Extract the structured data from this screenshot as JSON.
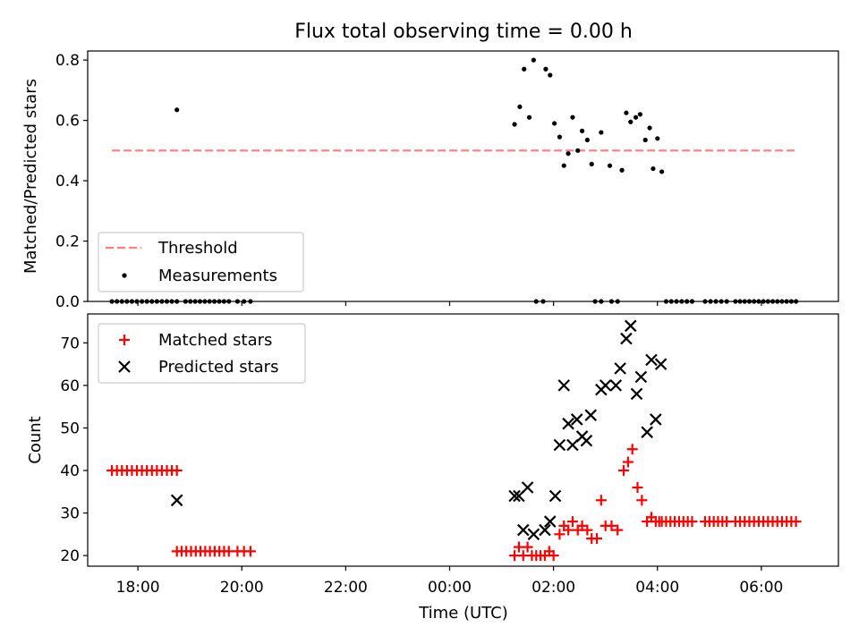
{
  "chart_data": [
    {
      "type": "scatter",
      "title": "Flux total observing time = 0.00 h",
      "ylabel": "Matched/Predicted stars",
      "xlabel": "",
      "xlim": [
        "17:02",
        "07:29"
      ],
      "ylim": [
        0,
        0.83
      ],
      "yticks": [
        "0.0",
        "0.2",
        "0.4",
        "0.6",
        "0.8"
      ],
      "legend": {
        "placement": "bottom-left",
        "entries": [
          "Threshold",
          "Measurements"
        ]
      },
      "threshold": {
        "name": "Threshold",
        "y": 0.5,
        "x_range": [
          "17:30",
          "06:40"
        ],
        "color": "#ff7f7f"
      },
      "series": [
        {
          "name": "Measurements",
          "color": "#000000",
          "points": [
            [
              "18:45",
              0.635
            ],
            [
              "01:15",
              0.587
            ],
            [
              "01:21",
              0.645
            ],
            [
              "01:26",
              0.77
            ],
            [
              "01:32",
              0.61
            ],
            [
              "01:37",
              0.8
            ],
            [
              "01:51",
              0.77
            ],
            [
              "01:56",
              0.75
            ],
            [
              "02:01",
              0.59
            ],
            [
              "02:07",
              0.545
            ],
            [
              "02:12",
              0.45
            ],
            [
              "02:17",
              0.49
            ],
            [
              "02:22",
              0.61
            ],
            [
              "02:28",
              0.5
            ],
            [
              "02:33",
              0.565
            ],
            [
              "02:39",
              0.535
            ],
            [
              "02:44",
              0.455
            ],
            [
              "02:55",
              0.56
            ],
            [
              "03:05",
              0.45
            ],
            [
              "03:19",
              0.435
            ],
            [
              "03:24",
              0.625
            ],
            [
              "03:29",
              0.595
            ],
            [
              "03:35",
              0.61
            ],
            [
              "03:40",
              0.62
            ],
            [
              "03:46",
              0.535
            ],
            [
              "03:51",
              0.575
            ],
            [
              "03:55",
              0.44
            ],
            [
              "04:00",
              0.54
            ],
            [
              "04:05",
              0.43
            ]
          ],
          "zero_runs": [
            [
              "17:30",
              "18:45",
              14
            ],
            [
              "18:55",
              "19:45",
              10
            ],
            [
              "19:55",
              "20:10",
              3
            ],
            [
              "01:40",
              "01:48",
              2
            ],
            [
              "02:48",
              "02:55",
              2
            ],
            [
              "03:07",
              "03:14",
              2
            ],
            [
              "04:10",
              "04:40",
              6
            ],
            [
              "04:55",
              "05:20",
              5
            ],
            [
              "05:30",
              "06:40",
              14
            ]
          ]
        }
      ]
    },
    {
      "type": "scatter",
      "title": "",
      "ylabel": "Count",
      "xlabel": "Time (UTC)",
      "xlim": [
        "17:02",
        "07:29"
      ],
      "ylim": [
        17.5,
        76.8
      ],
      "xticks": [
        "18:00",
        "20:00",
        "22:00",
        "00:00",
        "02:00",
        "04:00",
        "06:00"
      ],
      "yticks": [
        "20",
        "30",
        "40",
        "50",
        "60",
        "70"
      ],
      "legend": {
        "placement": "top-left",
        "entries": [
          "Matched stars",
          "Predicted stars"
        ]
      },
      "series": [
        {
          "name": "Matched stars",
          "marker": "+",
          "color": "#ff0000",
          "runs": [
            [
              "17:30",
              "18:45",
              14,
              40
            ],
            [
              "18:45",
              "19:45",
              12,
              21
            ],
            [
              "19:55",
              "20:10",
              3,
              21
            ],
            [
              "04:05",
              "04:40",
              8,
              28
            ],
            [
              "04:55",
              "05:20",
              6,
              28
            ],
            [
              "05:30",
              "06:40",
              14,
              28
            ]
          ],
          "points": [
            [
              "01:15",
              20
            ],
            [
              "01:20",
              22
            ],
            [
              "01:25",
              20
            ],
            [
              "01:30",
              22
            ],
            [
              "01:35",
              20
            ],
            [
              "01:40",
              20
            ],
            [
              "01:45",
              20
            ],
            [
              "01:50",
              20
            ],
            [
              "01:55",
              21
            ],
            [
              "02:00",
              20
            ],
            [
              "02:07",
              25
            ],
            [
              "02:12",
              27
            ],
            [
              "02:17",
              26
            ],
            [
              "02:22",
              28
            ],
            [
              "02:28",
              26
            ],
            [
              "02:33",
              27
            ],
            [
              "02:39",
              26
            ],
            [
              "02:44",
              24
            ],
            [
              "02:50",
              24
            ],
            [
              "02:55",
              33
            ],
            [
              "03:00",
              27
            ],
            [
              "03:07",
              27
            ],
            [
              "03:14",
              26
            ],
            [
              "03:21",
              40
            ],
            [
              "03:26",
              42
            ],
            [
              "03:31",
              45
            ],
            [
              "03:37",
              36
            ],
            [
              "03:42",
              33
            ],
            [
              "03:48",
              28
            ],
            [
              "03:53",
              29
            ],
            [
              "03:58",
              28
            ],
            [
              "04:02",
              28
            ]
          ]
        },
        {
          "name": "Predicted stars",
          "marker": "x",
          "color": "#000000",
          "points": [
            [
              "18:45",
              33
            ],
            [
              "01:15",
              34
            ],
            [
              "01:20",
              34
            ],
            [
              "01:25",
              26
            ],
            [
              "01:30",
              36
            ],
            [
              "01:37",
              25
            ],
            [
              "01:50",
              26
            ],
            [
              "01:56",
              28
            ],
            [
              "02:02",
              34
            ],
            [
              "02:07",
              46
            ],
            [
              "02:12",
              60
            ],
            [
              "02:17",
              51
            ],
            [
              "02:22",
              46
            ],
            [
              "02:27",
              52
            ],
            [
              "02:33",
              48
            ],
            [
              "02:38",
              47
            ],
            [
              "02:43",
              53
            ],
            [
              "02:55",
              59
            ],
            [
              "03:00",
              60
            ],
            [
              "03:12",
              60
            ],
            [
              "03:17",
              64
            ],
            [
              "03:24",
              71
            ],
            [
              "03:29",
              74
            ],
            [
              "03:36",
              58
            ],
            [
              "03:41",
              62
            ],
            [
              "03:48",
              49
            ],
            [
              "03:53",
              66
            ],
            [
              "03:58",
              52
            ],
            [
              "04:04",
              65
            ]
          ]
        }
      ]
    }
  ]
}
